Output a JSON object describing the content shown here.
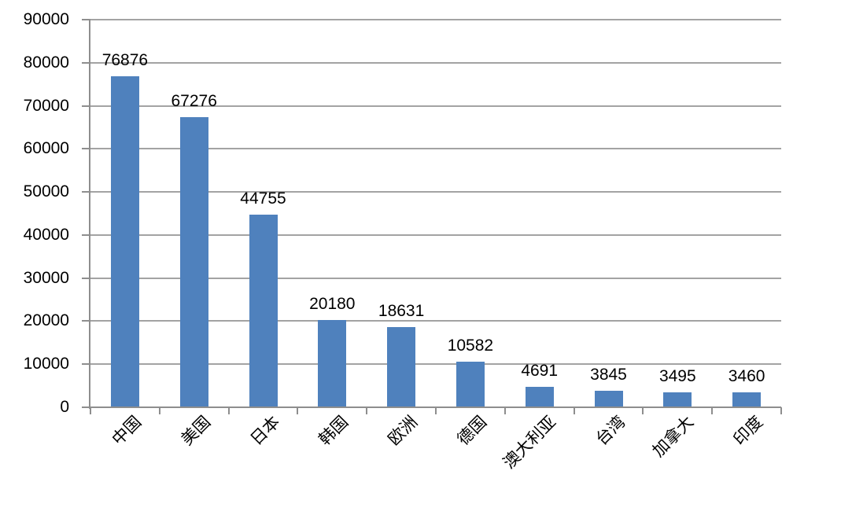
{
  "chart_data": {
    "type": "bar",
    "title": "",
    "categories": [
      "中国",
      "美国",
      "日本",
      "韩国",
      "欧洲",
      "德国",
      "澳大利亚",
      "台湾",
      "加拿大",
      "印度"
    ],
    "values": [
      76876,
      67276,
      44755,
      20180,
      18631,
      10582,
      4691,
      3845,
      3495,
      3460
    ],
    "data_labels": [
      "76876",
      "67276",
      "44755",
      "20180",
      "18631",
      "10582",
      "4691",
      "3845",
      "3495",
      "3460"
    ],
    "data_label_position": "outside-end",
    "xlabel": "",
    "ylabel": "",
    "ylim": [
      0,
      90000
    ],
    "ytick_step": 10000,
    "ytick_labels": [
      "0",
      "10000",
      "20000",
      "30000",
      "40000",
      "50000",
      "60000",
      "70000",
      "80000",
      "90000"
    ],
    "x_label_rotation_deg": 45,
    "grid": "horizontal",
    "legend": "none",
    "colors": {
      "bar": "#4F81BD",
      "gridline": "#A3A3A3",
      "axis": "#8E8E8E",
      "text": "#000000",
      "background": "#FFFFFF"
    }
  }
}
